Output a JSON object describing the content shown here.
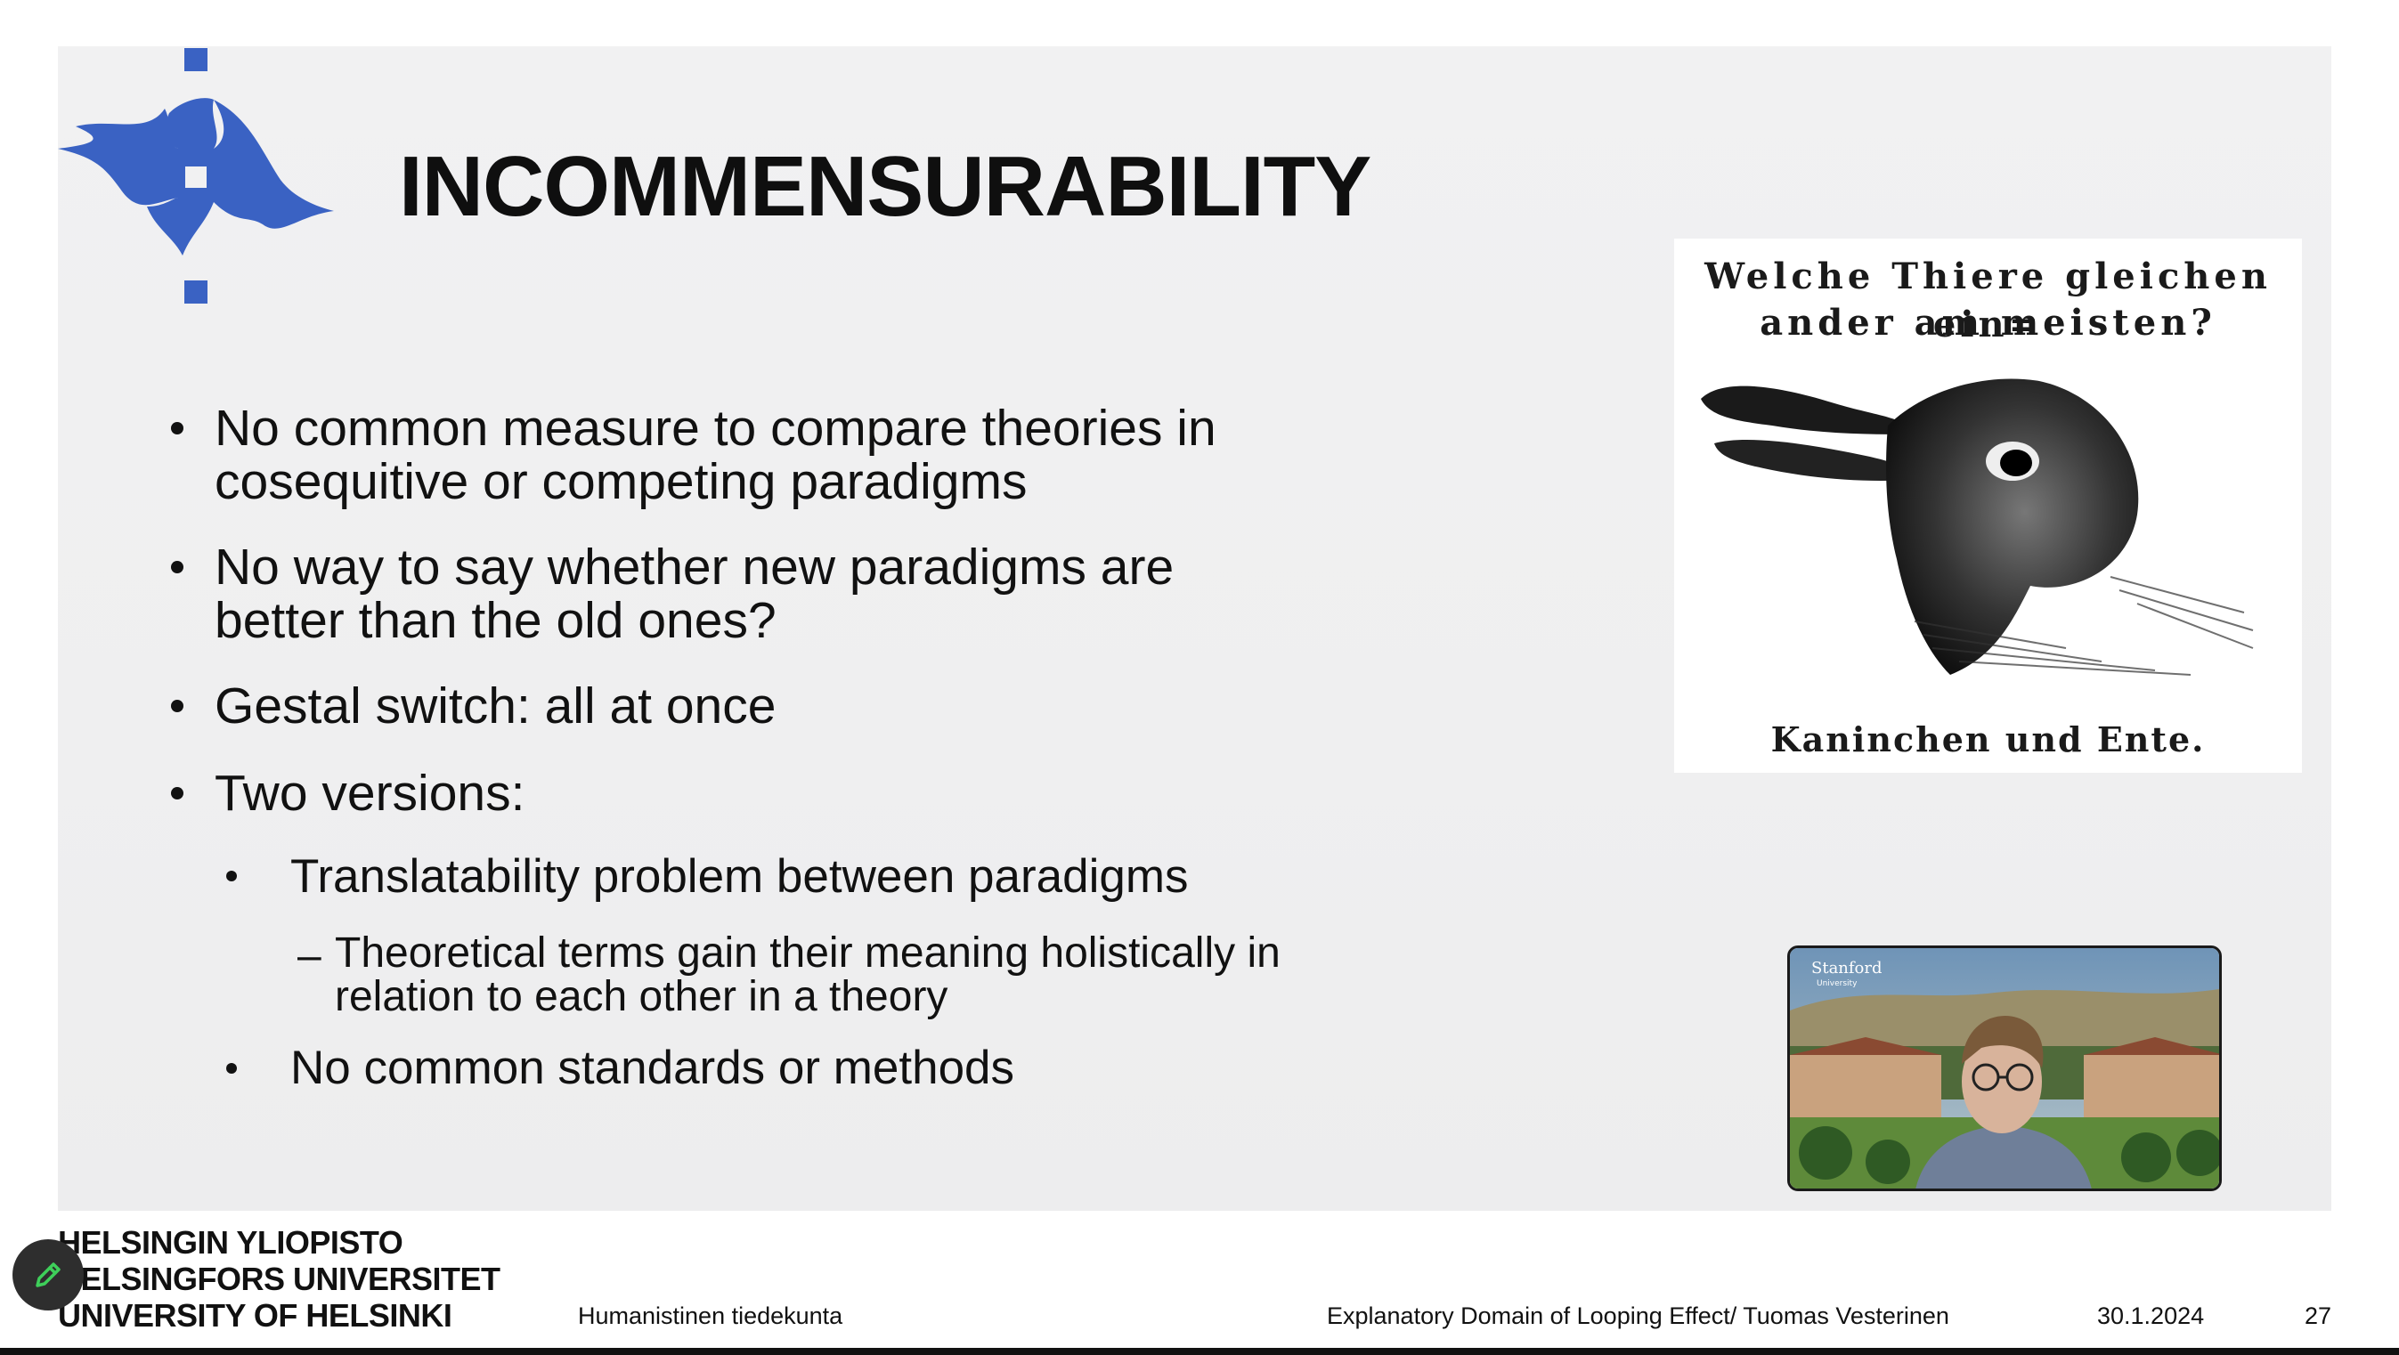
{
  "slide": {
    "title": "INCOMMENSURABILITY",
    "bullets": [
      {
        "lines": [
          "No common measure to compare theories in",
          "cosequitive or competing paradigms"
        ]
      },
      {
        "lines": [
          "No way to say whether new paradigms are",
          "better than the old ones?"
        ]
      },
      {
        "lines": [
          "Gestal switch: all at once"
        ]
      },
      {
        "lines": [
          "Two versions:"
        ]
      }
    ],
    "sub_bullets": [
      "Translatability problem between paradigms",
      "No common standards or methods"
    ],
    "sub_sub_bullet": {
      "dash": "–",
      "lines": [
        "Theoretical terms gain their meaning holistically in",
        "relation to each other in a theory"
      ]
    }
  },
  "illustration": {
    "caption_top_line1": "Welche Thiere gleichen ein=",
    "caption_top_line2": "ander am meisten?",
    "caption_bottom": "Kaninchen und Ente."
  },
  "video": {
    "background_logo_text": "Stanford",
    "background_logo_subtext": "University"
  },
  "footer": {
    "university_lines": [
      "HELSINGIN YLIOPISTO",
      "HELSINGFORS UNIVERSITET",
      "UNIVERSITY OF HELSINKI"
    ],
    "faculty": "Humanistinen tiedekunta",
    "presentation": "Explanatory Domain of Looping Effect/ Tuomas Vesterinen",
    "date": "30.1.2024",
    "page_number": "27"
  },
  "colors": {
    "logo_blue": "#3a62c3",
    "slide_background": "#efeff0",
    "text": "#111111"
  },
  "icons": {
    "logo": "helsinki-flame-logo-icon",
    "edit": "pencil-icon"
  }
}
